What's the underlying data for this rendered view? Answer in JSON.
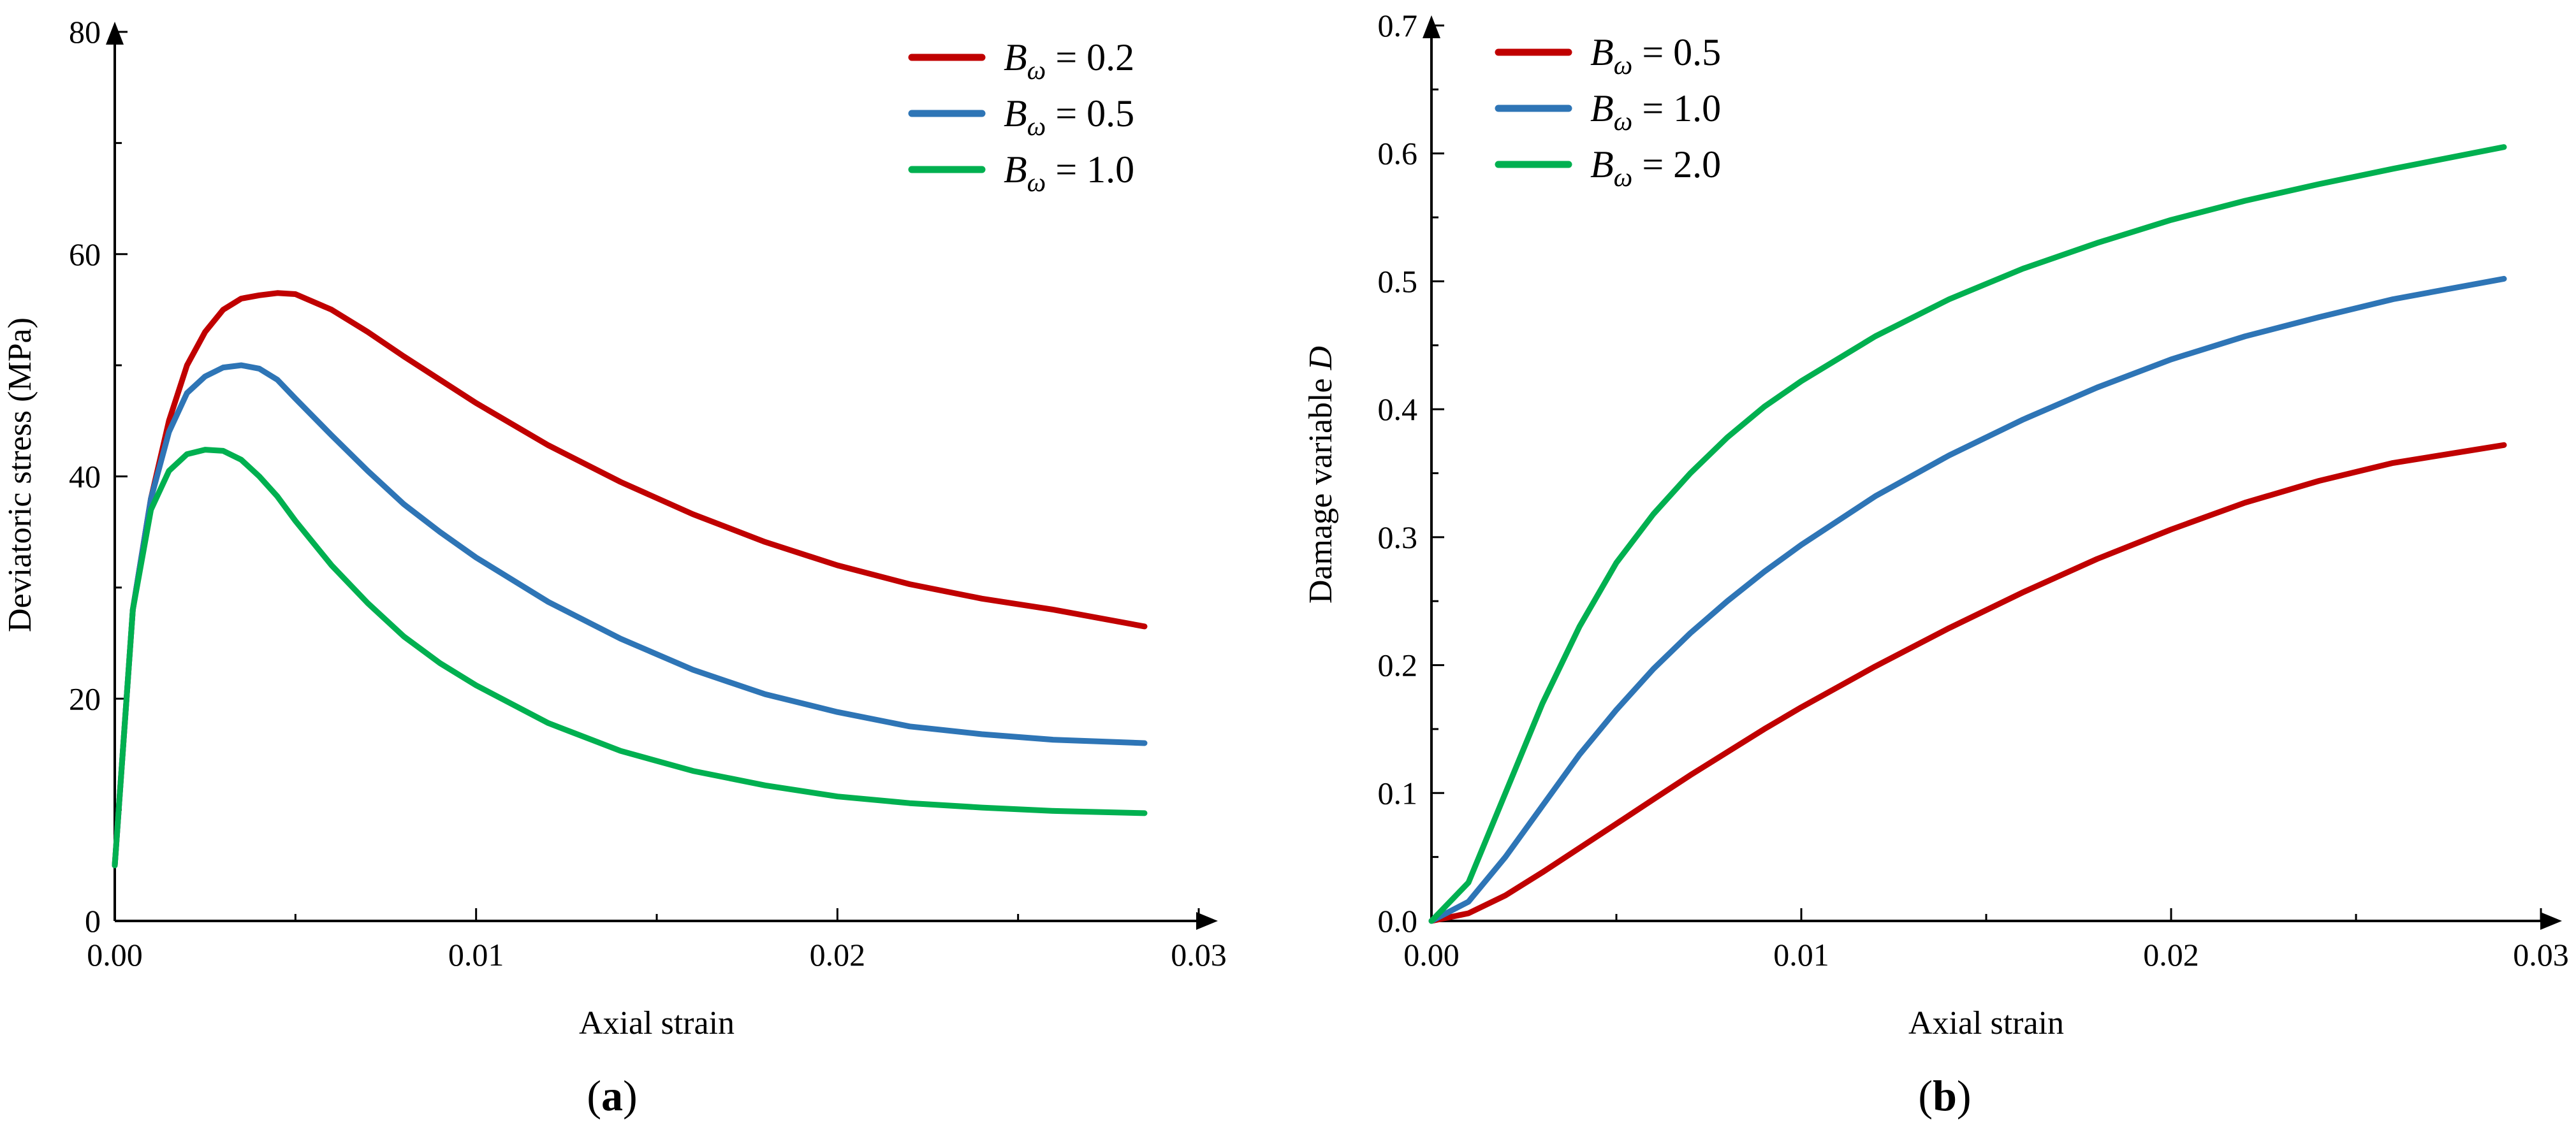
{
  "chart_data": [
    {
      "id": "a",
      "type": "line",
      "panel_label": "a",
      "xlabel": "Axial strain",
      "ylabel": "Deviatoric stress (MPa)",
      "xlim": [
        0,
        0.03
      ],
      "ylim": [
        0,
        80
      ],
      "x_ticks": [
        0,
        0.01,
        0.02,
        0.03
      ],
      "x_tick_labels": [
        "0.00",
        "0.01",
        "0.02",
        "0.03"
      ],
      "y_ticks": [
        0,
        20,
        40,
        60,
        80
      ],
      "y_tick_labels": [
        "0",
        "20",
        "40",
        "60",
        "80"
      ],
      "legend_position": "top-right",
      "series": [
        {
          "name": "B_ω = 0.2",
          "legend": {
            "symbol": "B",
            "subscript": "ω",
            "value": "= 0.2"
          },
          "color": "#c00000",
          "x": [
            0,
            0.0005,
            0.001,
            0.0015,
            0.002,
            0.0025,
            0.003,
            0.0035,
            0.004,
            0.0045,
            0.005,
            0.006,
            0.007,
            0.008,
            0.009,
            0.01,
            0.012,
            0.014,
            0.016,
            0.018,
            0.02,
            0.022,
            0.024,
            0.026,
            0.0285
          ],
          "y": [
            5,
            28,
            38,
            45,
            50,
            53,
            55,
            56,
            56.3,
            56.5,
            56.4,
            55,
            53,
            50.8,
            48.7,
            46.6,
            42.8,
            39.5,
            36.6,
            34.1,
            32,
            30.3,
            29,
            28,
            26.5
          ]
        },
        {
          "name": "B_ω = 0.5",
          "legend": {
            "symbol": "B",
            "subscript": "ω",
            "value": "= 0.5"
          },
          "color": "#2e75b6",
          "x": [
            0,
            0.0005,
            0.001,
            0.0015,
            0.002,
            0.0025,
            0.003,
            0.0035,
            0.004,
            0.0045,
            0.005,
            0.006,
            0.007,
            0.008,
            0.009,
            0.01,
            0.012,
            0.014,
            0.016,
            0.018,
            0.02,
            0.022,
            0.024,
            0.026,
            0.0285
          ],
          "y": [
            5,
            28,
            38,
            44,
            47.5,
            49,
            49.8,
            50,
            49.7,
            48.7,
            47,
            43.7,
            40.5,
            37.5,
            35,
            32.7,
            28.7,
            25.4,
            22.6,
            20.4,
            18.8,
            17.5,
            16.8,
            16.3,
            16
          ]
        },
        {
          "name": "B_ω = 1.0",
          "legend": {
            "symbol": "B",
            "subscript": "ω",
            "value": "= 1.0"
          },
          "color": "#00b050",
          "x": [
            0,
            0.0005,
            0.001,
            0.0015,
            0.002,
            0.0025,
            0.003,
            0.0035,
            0.004,
            0.0045,
            0.005,
            0.006,
            0.007,
            0.008,
            0.009,
            0.01,
            0.012,
            0.014,
            0.016,
            0.018,
            0.02,
            0.022,
            0.024,
            0.026,
            0.0285
          ],
          "y": [
            5,
            28,
            37,
            40.5,
            42,
            42.4,
            42.3,
            41.5,
            40,
            38.2,
            36,
            32,
            28.6,
            25.6,
            23.2,
            21.2,
            17.8,
            15.3,
            13.5,
            12.2,
            11.2,
            10.6,
            10.2,
            9.9,
            9.7
          ]
        }
      ]
    },
    {
      "id": "b",
      "type": "line",
      "panel_label": "b",
      "xlabel": "Axial strain",
      "ylabel": "Damage variable D",
      "ylabel_main": "Damage variable ",
      "ylabel_italic": "D",
      "xlim": [
        0,
        0.03
      ],
      "ylim": [
        0,
        0.7
      ],
      "x_ticks": [
        0,
        0.01,
        0.02,
        0.03
      ],
      "x_tick_labels": [
        "0.00",
        "0.01",
        "0.02",
        "0.03"
      ],
      "y_ticks": [
        0,
        0.1,
        0.2,
        0.3,
        0.4,
        0.5,
        0.6,
        0.7
      ],
      "y_tick_labels": [
        "0.0",
        "0.1",
        "0.2",
        "0.3",
        "0.4",
        "0.5",
        "0.6",
        "0.7"
      ],
      "legend_position": "top-left",
      "series": [
        {
          "name": "B_ω = 0.5",
          "legend": {
            "symbol": "B",
            "subscript": "ω",
            "value": "= 0.5"
          },
          "color": "#c00000",
          "x": [
            0,
            0.001,
            0.002,
            0.003,
            0.004,
            0.005,
            0.006,
            0.007,
            0.008,
            0.009,
            0.01,
            0.012,
            0.014,
            0.016,
            0.018,
            0.02,
            0.022,
            0.024,
            0.026,
            0.029
          ],
          "y": [
            0,
            0.006,
            0.02,
            0.038,
            0.057,
            0.076,
            0.095,
            0.114,
            0.132,
            0.15,
            0.167,
            0.199,
            0.229,
            0.257,
            0.283,
            0.306,
            0.327,
            0.344,
            0.358,
            0.372
          ]
        },
        {
          "name": "B_ω = 1.0",
          "legend": {
            "symbol": "B",
            "subscript": "ω",
            "value": "= 1.0"
          },
          "color": "#2e75b6",
          "x": [
            0,
            0.001,
            0.002,
            0.003,
            0.004,
            0.005,
            0.006,
            0.007,
            0.008,
            0.009,
            0.01,
            0.012,
            0.014,
            0.016,
            0.018,
            0.02,
            0.022,
            0.024,
            0.026,
            0.029
          ],
          "y": [
            0,
            0.015,
            0.05,
            0.09,
            0.13,
            0.165,
            0.197,
            0.225,
            0.25,
            0.273,
            0.294,
            0.332,
            0.364,
            0.392,
            0.417,
            0.439,
            0.457,
            0.472,
            0.486,
            0.502
          ]
        },
        {
          "name": "B_ω = 2.0",
          "legend": {
            "symbol": "B",
            "subscript": "ω",
            "value": "= 2.0"
          },
          "color": "#00b050",
          "x": [
            0,
            0.001,
            0.002,
            0.003,
            0.004,
            0.005,
            0.006,
            0.007,
            0.008,
            0.009,
            0.01,
            0.012,
            0.014,
            0.016,
            0.018,
            0.02,
            0.022,
            0.024,
            0.026,
            0.029
          ],
          "y": [
            0,
            0.03,
            0.1,
            0.17,
            0.23,
            0.28,
            0.318,
            0.35,
            0.378,
            0.402,
            0.422,
            0.457,
            0.486,
            0.51,
            0.53,
            0.548,
            0.563,
            0.576,
            0.588,
            0.605
          ]
        }
      ]
    }
  ]
}
